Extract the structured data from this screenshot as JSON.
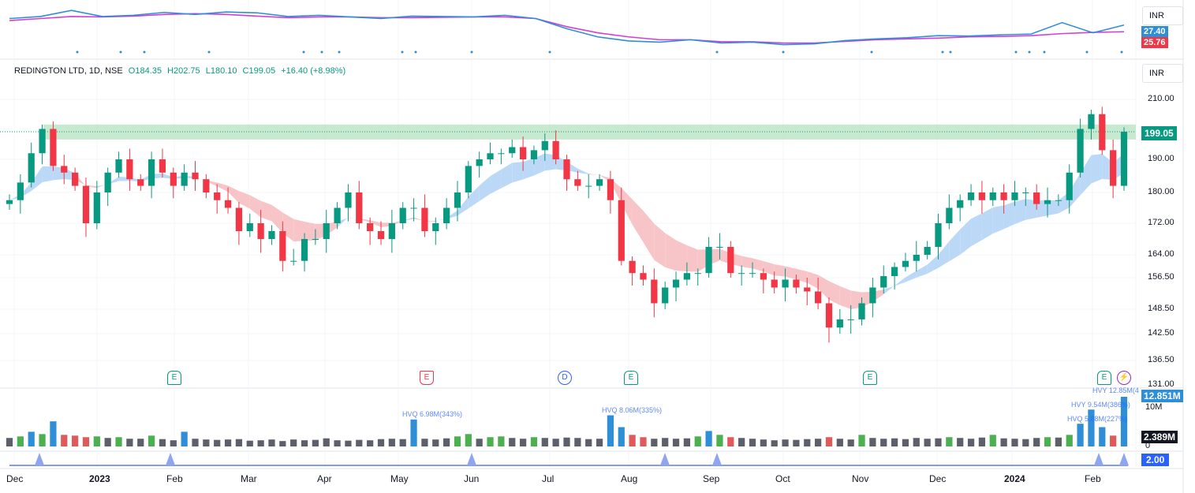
{
  "symbol_legend": {
    "title": "REDINGTON LTD, 1D, NSE",
    "open": "O184.35",
    "high": "H202.75",
    "low": "L180.10",
    "close": "C199.05",
    "change": "+16.40 (+8.98%)"
  },
  "currency_top": "INR",
  "currency_main": "INR",
  "indicator": {
    "blue_value": "27.40",
    "pink_value": "25.76",
    "ylim": [
      20,
      32
    ],
    "blue": [
      29,
      29.5,
      31,
      29.5,
      29.8,
      30.5,
      30,
      30.6,
      30.4,
      29.5,
      29.8,
      29.4,
      29,
      29.6,
      29.5,
      29.4,
      29.8,
      29,
      26.5,
      24.5,
      23.5,
      23.2,
      23.8,
      23,
      23.2,
      22.6,
      22.8,
      23.6,
      24,
      24.3,
      24.8,
      24.7,
      25,
      25.2,
      28,
      25.5,
      27.4
    ],
    "pink": [
      28.5,
      29,
      29.5,
      29.4,
      29.6,
      30,
      30.2,
      30,
      29.6,
      29.2,
      29.4,
      29.4,
      29.2,
      29.2,
      29.3,
      29.4,
      29.4,
      29,
      27,
      25.5,
      24.5,
      23.8,
      23.8,
      23.3,
      23.3,
      23,
      23,
      23.4,
      23.8,
      24,
      24.2,
      24.5,
      24.6,
      24.8,
      25.3,
      25.6,
      25.76
    ],
    "blue_color": "#2e8fd8",
    "pink_color": "#d33fd6"
  },
  "price_axis": {
    "ticks": [
      "210.00",
      "190.00",
      "180.00",
      "172.00",
      "164.00",
      "156.50",
      "148.50",
      "142.50",
      "136.50",
      "131.00"
    ],
    "last_price": "199.05",
    "last_price_color": "#089981"
  },
  "zone": {
    "low": 196.5,
    "high": 201.5,
    "color": "#b9e4c3"
  },
  "chart_data": {
    "type": "candlestick",
    "closes": [
      178,
      183,
      192,
      200,
      188,
      186,
      182,
      172,
      180,
      186,
      190,
      184,
      182,
      190,
      186,
      182,
      186,
      184,
      180,
      178,
      176,
      170,
      172,
      168,
      170,
      162,
      162,
      168,
      168,
      172,
      176,
      180,
      172,
      170,
      168,
      172,
      176,
      176,
      170,
      172,
      176,
      180,
      188,
      190,
      192,
      192,
      194,
      190,
      193,
      196,
      190,
      184,
      182,
      182,
      184,
      178,
      162,
      158,
      156,
      150,
      154,
      156,
      158,
      158,
      166,
      166,
      158,
      158,
      158,
      156,
      154,
      156,
      154,
      153,
      150,
      144,
      146,
      146,
      150,
      154,
      157,
      160,
      162,
      164,
      166,
      172,
      176,
      178,
      180,
      178,
      180,
      178,
      180,
      180,
      177,
      178,
      178,
      186,
      200,
      205,
      193,
      182,
      199.05
    ],
    "volumes_m": [
      2.2,
      2.6,
      3.8,
      3.2,
      6.5,
      3.0,
      2.8,
      2.4,
      2.6,
      2.2,
      2.4,
      2.0,
      2.0,
      2.8,
      1.9,
      1.6,
      3.8,
      2.0,
      1.8,
      1.7,
      1.8,
      1.9,
      1.5,
      1.6,
      1.8,
      1.4,
      1.8,
      1.6,
      1.7,
      2.1,
      1.6,
      1.5,
      1.7,
      1.6,
      1.9,
      2.0,
      1.9,
      6.98,
      2.0,
      1.8,
      2.1,
      2.6,
      3.2,
      2.0,
      2.4,
      2.6,
      2.2,
      2.0,
      2.4,
      2.2,
      2.0,
      2.3,
      2.2,
      1.9,
      2.0,
      8.06,
      5.0,
      3.0,
      2.4,
      2.0,
      2.2,
      2.0,
      2.1,
      2.6,
      4.0,
      3.0,
      2.4,
      2.2,
      2.0,
      1.8,
      1.6,
      1.8,
      1.7,
      1.9,
      2.0,
      2.4,
      2.0,
      1.8,
      3.0,
      2.2,
      2.0,
      2.1,
      1.9,
      2.2,
      2.0,
      2.1,
      2.4,
      2.2,
      2.0,
      2.3,
      3.0,
      2.1,
      2.0,
      1.9,
      2.2,
      2.4,
      2.3,
      3.0,
      5.88,
      9.54,
      5.0,
      2.8,
      12.85
    ],
    "volume_ticks": [
      "10M",
      "0"
    ],
    "volume_last": "12.851M",
    "volume_avg": "2.389M",
    "volume_annotations": [
      "HVQ 6.98M(343%)",
      "HVQ 8.06M(335%)",
      "HVY 12.85M(4",
      "HVY 9.54M(386%)",
      "HVQ 5.88M(227%)"
    ],
    "x_labels": [
      "Dec",
      "2023",
      "Feb",
      "Mar",
      "Apr",
      "May",
      "Jun",
      "Jul",
      "Aug",
      "Sep",
      "Oct",
      "Nov",
      "Dec",
      "2024",
      "Feb"
    ],
    "up_color": "#089981",
    "down_color": "#f23645",
    "ema_band_up": "#bbd9f7",
    "ema_band_down": "#f7c5c8"
  },
  "events": [
    "E",
    "E",
    "D",
    "E",
    "E",
    "E",
    "⚡"
  ],
  "signal_panel": {
    "value": "2.00",
    "color": "#2962ff"
  }
}
